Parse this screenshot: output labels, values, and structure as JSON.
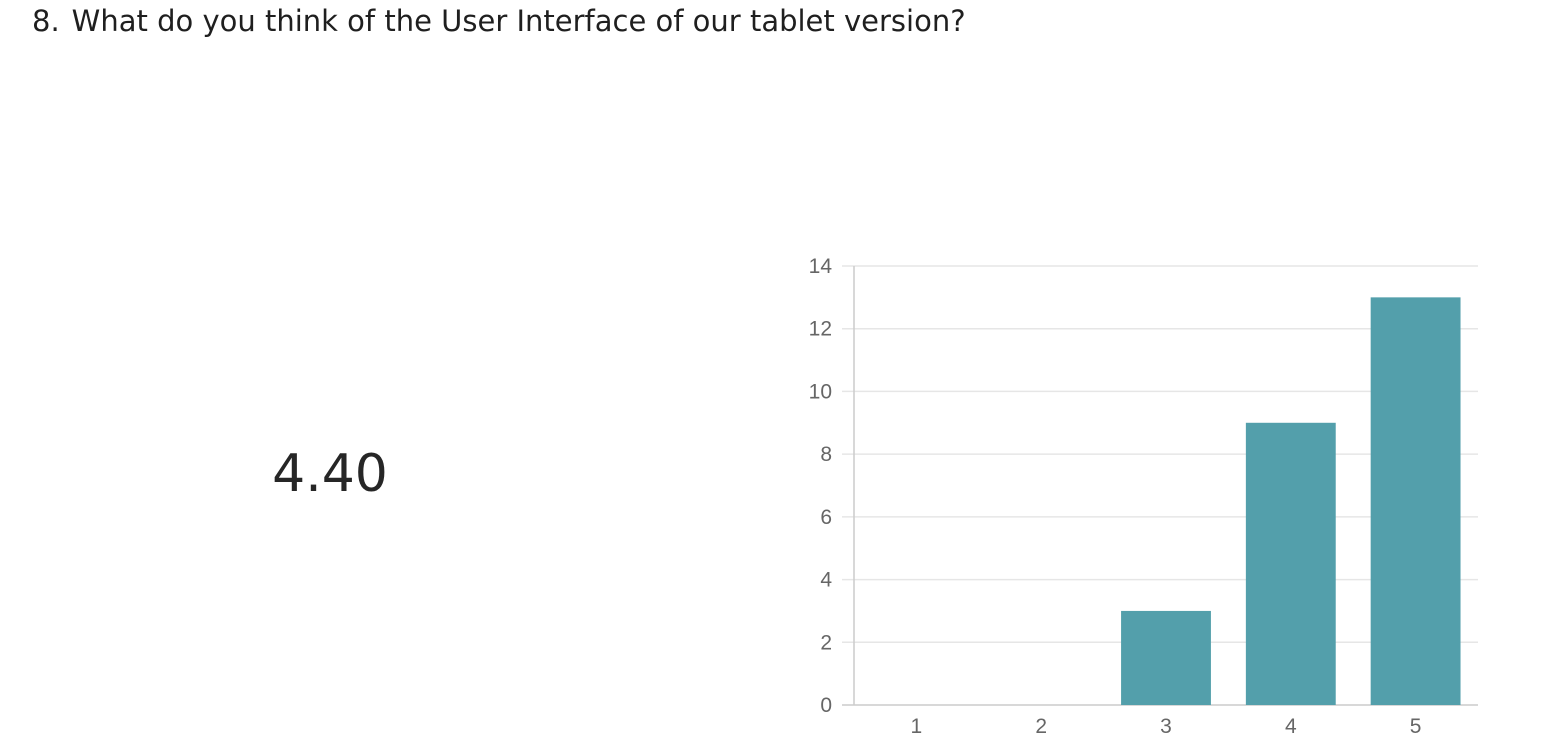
{
  "question": {
    "number": "8.",
    "text": "What do you think of the User Interface of our tablet version?"
  },
  "summary": {
    "average": "4.40"
  },
  "chart_data": {
    "type": "bar",
    "categories": [
      "1",
      "2",
      "3",
      "4",
      "5"
    ],
    "values": [
      0,
      0,
      3,
      9,
      13
    ],
    "ylim": [
      0,
      14
    ],
    "yticks": [
      0,
      2,
      4,
      6,
      8,
      10,
      12,
      14
    ],
    "grid": true,
    "bar_color": "#539fab",
    "grid_color": "#e6e6e6",
    "axis_color": "#cccccc",
    "title": "",
    "xlabel": "",
    "ylabel": ""
  }
}
